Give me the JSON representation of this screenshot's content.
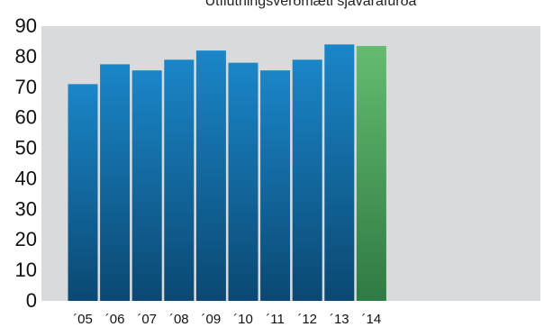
{
  "chart_data": {
    "type": "bar",
    "title": "Útflutningsverðmæti sjávarafurða",
    "categories": [
      "´05",
      "´06",
      "´07",
      "´08",
      "´09",
      "´10",
      "´11",
      "´12",
      "´13",
      "´14"
    ],
    "values": [
      71,
      77.5,
      75.5,
      79,
      82,
      78,
      75.5,
      79,
      84,
      83.5
    ],
    "ylim": [
      0,
      90
    ],
    "yticks": [
      0,
      10,
      20,
      30,
      40,
      50,
      60,
      70,
      80,
      90
    ],
    "xlabel": "",
    "ylabel": "",
    "grid": false,
    "colors": {
      "plot_background": "#d9dadb",
      "bar_top": "#1a86c8",
      "bar_bottom": "#0b4872",
      "highlight_top": "#64bc70",
      "highlight_bottom": "#2f7a43",
      "highlight_category": "´14"
    }
  }
}
